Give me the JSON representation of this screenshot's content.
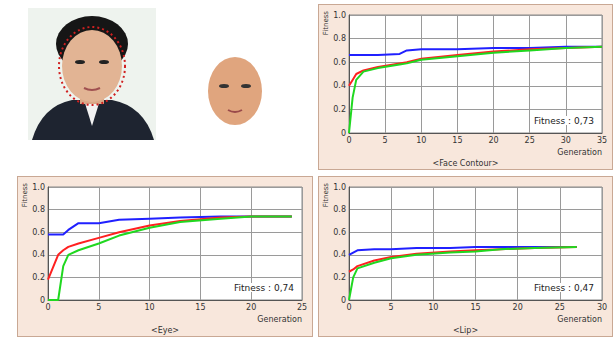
{
  "chart_data": [
    {
      "type": "line",
      "title": "<Face Contour>",
      "xlabel": "Generation",
      "ylabel": "Fitness",
      "annotation": "Fitness : 0,73",
      "x": [
        0,
        0.5,
        1,
        2,
        4,
        7,
        8,
        10,
        15,
        20,
        25,
        30,
        35
      ],
      "series": [
        {
          "color": "#2020ff",
          "values": [
            0.66,
            0.66,
            0.66,
            0.66,
            0.66,
            0.67,
            0.7,
            0.71,
            0.71,
            0.72,
            0.72,
            0.73,
            0.73
          ]
        },
        {
          "color": "#ff2020",
          "values": [
            0.4,
            0.45,
            0.5,
            0.53,
            0.56,
            0.59,
            0.6,
            0.63,
            0.66,
            0.69,
            0.71,
            0.72,
            0.73
          ]
        },
        {
          "color": "#20d820",
          "values": [
            0,
            0.3,
            0.45,
            0.52,
            0.55,
            0.58,
            0.59,
            0.62,
            0.65,
            0.68,
            0.7,
            0.72,
            0.73
          ]
        }
      ],
      "xlim": [
        0,
        35
      ],
      "xticks": [
        0,
        5,
        10,
        15,
        20,
        25,
        30,
        35
      ],
      "ylim": [
        0,
        1
      ],
      "yticks": [
        0,
        0.2,
        0.4,
        0.6,
        0.8,
        {
          "value": 1,
          "label": "1.0"
        }
      ],
      "grid": true
    },
    {
      "type": "line",
      "title": "<Eye>",
      "xlabel": "Generation",
      "ylabel": "Fitness",
      "annotation": "Fitness : 0,74",
      "x": [
        0,
        1,
        1.5,
        2,
        3,
        5,
        7,
        10,
        13,
        17,
        20,
        24
      ],
      "series": [
        {
          "color": "#2020ff",
          "values": [
            0.58,
            0.58,
            0.58,
            0.62,
            0.68,
            0.68,
            0.71,
            0.72,
            0.73,
            0.74,
            0.74,
            0.74
          ]
        },
        {
          "color": "#ff2020",
          "values": [
            0.18,
            0.4,
            0.44,
            0.47,
            0.5,
            0.55,
            0.6,
            0.66,
            0.7,
            0.73,
            0.74,
            0.74
          ]
        },
        {
          "color": "#20d820",
          "values": [
            0,
            0,
            0.3,
            0.4,
            0.44,
            0.5,
            0.57,
            0.64,
            0.69,
            0.72,
            0.74,
            0.74
          ]
        }
      ],
      "xlim": [
        0,
        25
      ],
      "xticks": [
        0,
        5,
        10,
        15,
        20,
        25
      ],
      "ylim": [
        0,
        1
      ],
      "yticks": [
        0,
        0.2,
        0.4,
        0.6,
        0.8,
        {
          "value": 1,
          "label": "1.0"
        }
      ],
      "grid": true
    },
    {
      "type": "line",
      "title": "<Lip>",
      "xlabel": "Generation",
      "ylabel": "Fitness",
      "annotation": "Fitness : 0,47",
      "x": [
        0,
        0.5,
        1,
        3,
        5,
        8,
        12,
        15,
        18,
        22,
        27
      ],
      "series": [
        {
          "color": "#2020ff",
          "values": [
            0.4,
            0.42,
            0.44,
            0.45,
            0.45,
            0.46,
            0.46,
            0.47,
            0.47,
            0.47,
            0.47
          ]
        },
        {
          "color": "#ff2020",
          "values": [
            0.25,
            0.27,
            0.3,
            0.35,
            0.38,
            0.41,
            0.43,
            0.44,
            0.45,
            0.46,
            0.47
          ]
        },
        {
          "color": "#20d820",
          "values": [
            0,
            0.2,
            0.28,
            0.33,
            0.37,
            0.4,
            0.42,
            0.43,
            0.45,
            0.46,
            0.47
          ]
        }
      ],
      "xlim": [
        0,
        30
      ],
      "xticks": [
        0,
        5,
        10,
        15,
        20,
        25,
        30
      ],
      "ylim": [
        0,
        1
      ],
      "yticks": [
        0,
        0.2,
        0.4,
        0.6,
        0.8,
        {
          "value": 1,
          "label": "1.0"
        }
      ],
      "grid": true
    }
  ]
}
